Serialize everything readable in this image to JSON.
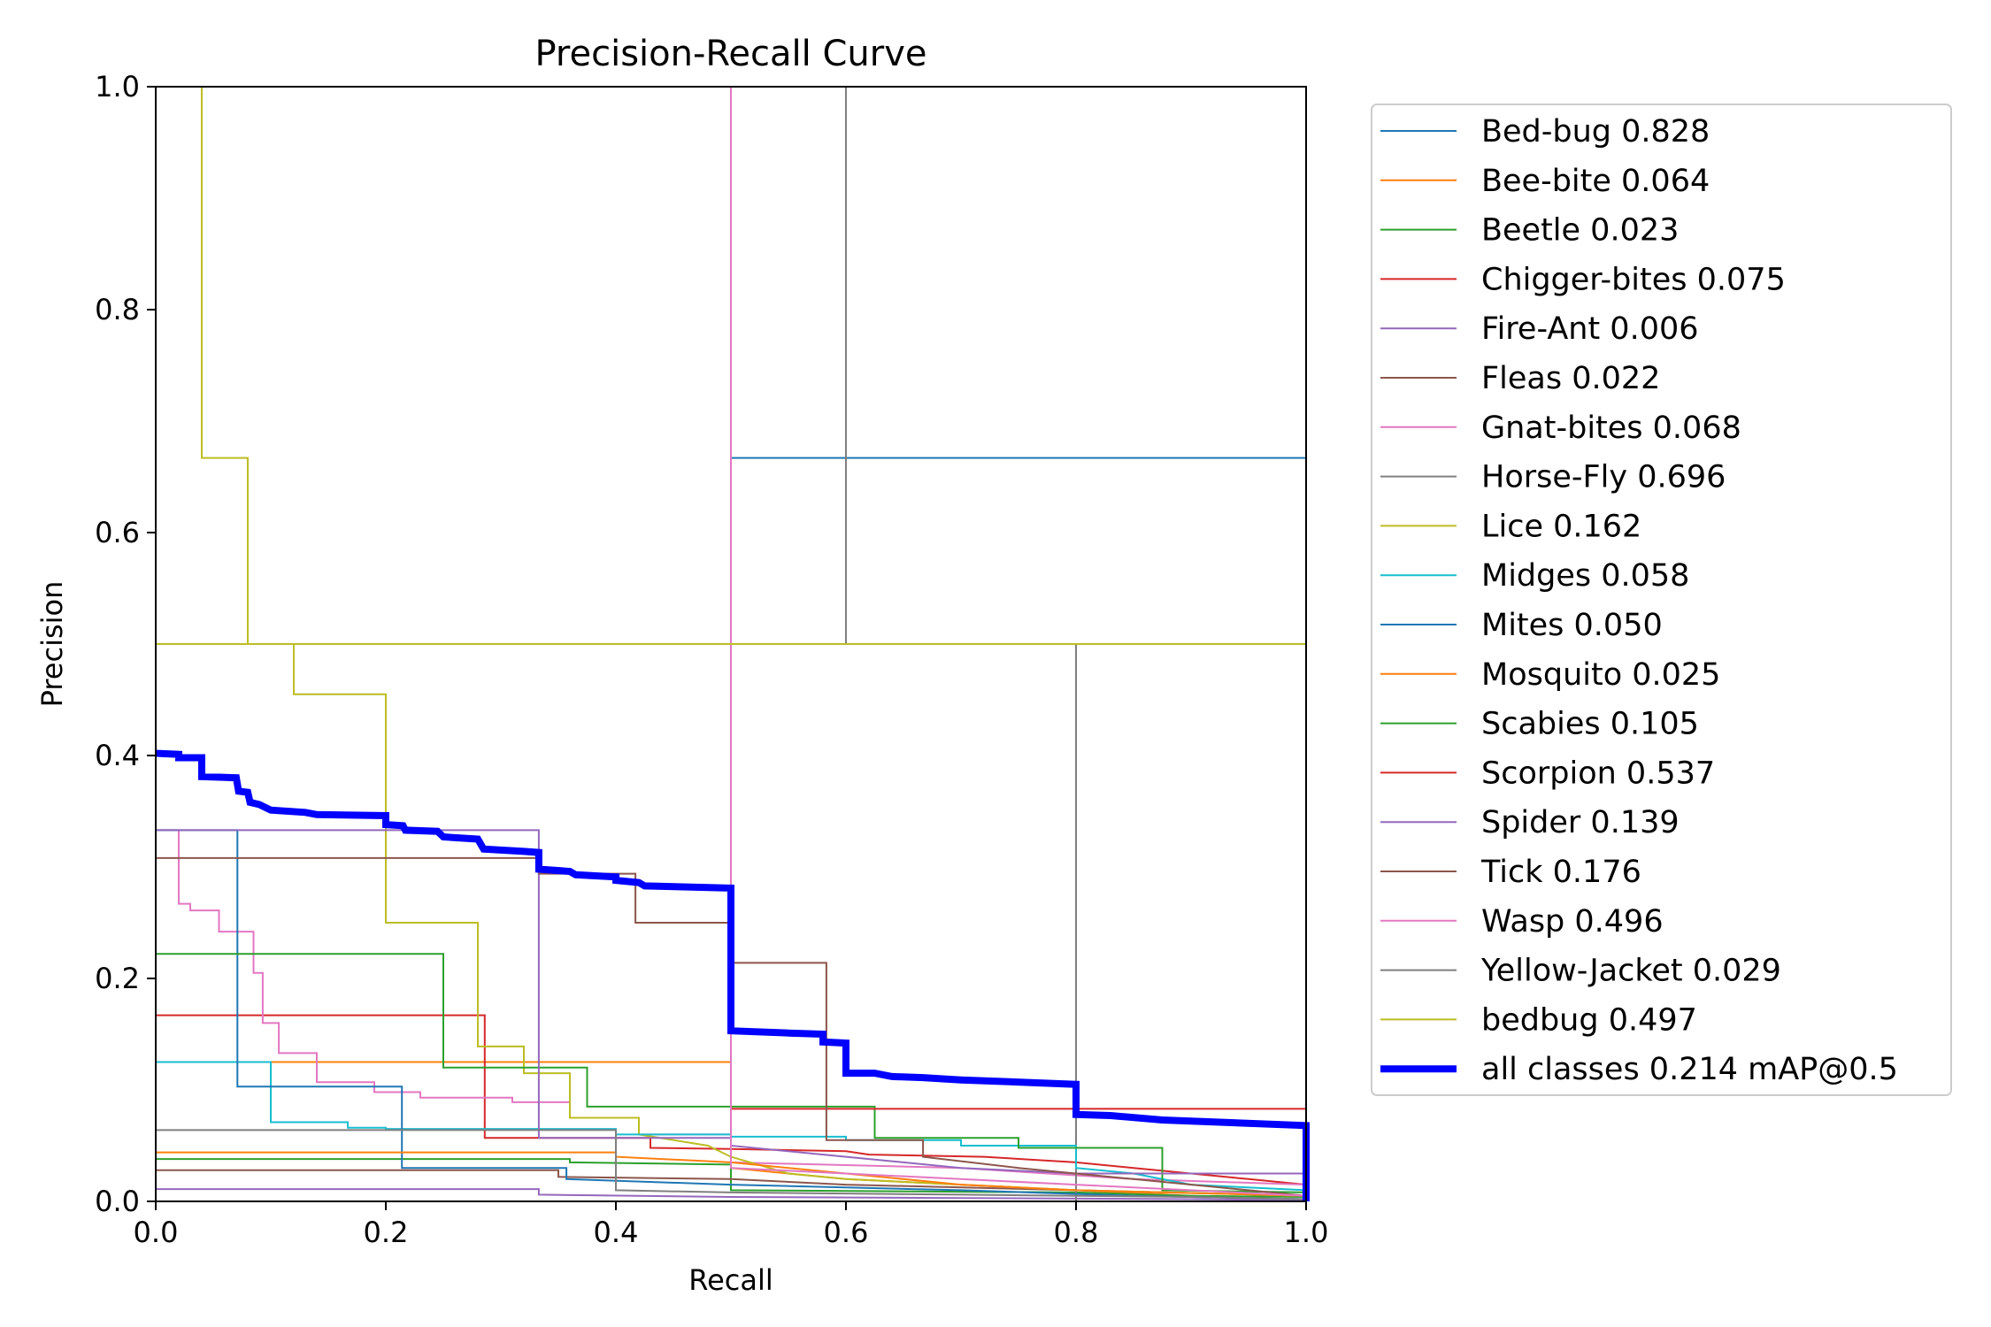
{
  "chart_data": {
    "type": "line",
    "title": "Precision-Recall Curve",
    "xlabel": "Recall",
    "ylabel": "Precision",
    "xlim": [
      0,
      1
    ],
    "ylim": [
      0,
      1
    ],
    "x_ticks": [
      "0.0",
      "0.2",
      "0.4",
      "0.6",
      "0.8",
      "1.0"
    ],
    "y_ticks": [
      "0.0",
      "0.2",
      "0.4",
      "0.6",
      "0.8",
      "1.0"
    ],
    "grid": false,
    "legend_position": "outside-right",
    "series": [
      {
        "name": "Bed-bug",
        "ap": "0.828",
        "color": "#1f77b4",
        "width": 1,
        "points": [
          [
            0,
            0.5
          ],
          [
            0.5,
            0.5
          ],
          [
            0.5,
            0.667
          ],
          [
            1.0,
            0.667
          ],
          [
            1.0,
            0.5
          ],
          [
            1.0,
            0
          ]
        ]
      },
      {
        "name": "Bee-bite",
        "ap": "0.064",
        "color": "#ff7f0e",
        "width": 1,
        "points": [
          [
            0,
            0.125
          ],
          [
            0.5,
            0.125
          ],
          [
            0.5,
            0.03
          ],
          [
            0.55,
            0.025
          ],
          [
            0.6,
            0.02
          ],
          [
            0.7,
            0.015
          ],
          [
            0.8,
            0.01
          ],
          [
            0.9,
            0.005
          ],
          [
            1.0,
            0
          ]
        ]
      },
      {
        "name": "Beetle",
        "ap": "0.023",
        "color": "#2ca02c",
        "width": 1,
        "points": [
          [
            0,
            0.038
          ],
          [
            0.36,
            0.038
          ],
          [
            0.36,
            0.035
          ],
          [
            0.5,
            0.033
          ],
          [
            0.5,
            0.01
          ],
          [
            0.8,
            0.008
          ],
          [
            0.9,
            0.005
          ],
          [
            1.0,
            0.004
          ]
        ]
      },
      {
        "name": "Chigger-bites",
        "ap": "0.075",
        "color": "#d62728",
        "width": 1,
        "points": [
          [
            0,
            0.167
          ],
          [
            0.286,
            0.167
          ],
          [
            0.286,
            0.057
          ],
          [
            0.43,
            0.057
          ],
          [
            0.43,
            0.048
          ],
          [
            0.5,
            0.047
          ],
          [
            0.6,
            0.045
          ],
          [
            0.62,
            0.042
          ],
          [
            0.72,
            0.04
          ],
          [
            0.8,
            0.035
          ],
          [
            0.85,
            0.03
          ],
          [
            0.95,
            0.02
          ],
          [
            1.0,
            0.015
          ]
        ]
      },
      {
        "name": "Fire-Ant",
        "ap": "0.006",
        "color": "#9467bd",
        "width": 1,
        "points": [
          [
            0,
            0.011
          ],
          [
            0.333,
            0.011
          ],
          [
            0.333,
            0.006
          ],
          [
            0.5,
            0.004
          ],
          [
            0.7,
            0.003
          ],
          [
            0.9,
            0.002
          ],
          [
            1.0,
            0.001
          ]
        ]
      },
      {
        "name": "Fleas",
        "ap": "0.022",
        "color": "#8c564b",
        "width": 1,
        "points": [
          [
            0,
            0.028
          ],
          [
            0.35,
            0.028
          ],
          [
            0.35,
            0.022
          ],
          [
            0.5,
            0.02
          ],
          [
            0.6,
            0.015
          ],
          [
            0.8,
            0.01
          ],
          [
            1.0,
            0.005
          ]
        ]
      },
      {
        "name": "Gnat-bites",
        "ap": "0.068",
        "color": "#e377c2",
        "width": 1,
        "points": [
          [
            0,
            0.333
          ],
          [
            0.02,
            0.333
          ],
          [
            0.02,
            0.267
          ],
          [
            0.03,
            0.267
          ],
          [
            0.03,
            0.261
          ],
          [
            0.055,
            0.261
          ],
          [
            0.055,
            0.242
          ],
          [
            0.085,
            0.242
          ],
          [
            0.085,
            0.205
          ],
          [
            0.093,
            0.205
          ],
          [
            0.093,
            0.16
          ],
          [
            0.107,
            0.16
          ],
          [
            0.107,
            0.133
          ],
          [
            0.14,
            0.133
          ],
          [
            0.14,
            0.107
          ],
          [
            0.19,
            0.107
          ],
          [
            0.19,
            0.098
          ],
          [
            0.23,
            0.098
          ],
          [
            0.23,
            0.093
          ],
          [
            0.31,
            0.093
          ],
          [
            0.31,
            0.089
          ],
          [
            0.36,
            0.089
          ],
          [
            0.36,
            0.075
          ],
          [
            0.42,
            0.075
          ],
          [
            0.42,
            0.06
          ],
          [
            0.5,
            0.06
          ],
          [
            0.5,
            0.035
          ],
          [
            0.7,
            0.03
          ],
          [
            0.85,
            0.02
          ],
          [
            1.0,
            0.015
          ]
        ]
      },
      {
        "name": "Horse-Fly",
        "ap": "0.696",
        "color": "#7f7f7f",
        "width": 1,
        "points": [
          [
            0,
            0.5
          ],
          [
            0.6,
            0.5
          ],
          [
            0.6,
            1.0
          ],
          [
            0.6,
            0.5
          ],
          [
            0.8,
            0.5
          ],
          [
            0.8,
            0
          ],
          [
            1.0,
            0
          ]
        ]
      },
      {
        "name": "Lice",
        "ap": "0.162",
        "color": "#bcbd22",
        "width": 1,
        "points": [
          [
            0.04,
            1.0
          ],
          [
            0.04,
            0.667
          ],
          [
            0.08,
            0.667
          ],
          [
            0.08,
            0.5
          ],
          [
            0.12,
            0.5
          ],
          [
            0.12,
            0.455
          ],
          [
            0.2,
            0.455
          ],
          [
            0.2,
            0.25
          ],
          [
            0.28,
            0.25
          ],
          [
            0.28,
            0.139
          ],
          [
            0.32,
            0.139
          ],
          [
            0.32,
            0.115
          ],
          [
            0.36,
            0.115
          ],
          [
            0.36,
            0.075
          ],
          [
            0.42,
            0.075
          ],
          [
            0.42,
            0.06
          ],
          [
            0.48,
            0.05
          ],
          [
            0.5,
            0.04
          ],
          [
            0.55,
            0.025
          ],
          [
            0.6,
            0.02
          ],
          [
            0.7,
            0.015
          ],
          [
            0.8,
            0.01
          ],
          [
            1.0,
            0.005
          ]
        ]
      },
      {
        "name": "Midges",
        "ap": "0.058",
        "color": "#17becf",
        "width": 1,
        "points": [
          [
            0,
            0.125
          ],
          [
            0.1,
            0.125
          ],
          [
            0.1,
            0.071
          ],
          [
            0.167,
            0.071
          ],
          [
            0.167,
            0.066
          ],
          [
            0.2,
            0.066
          ],
          [
            0.2,
            0.065
          ],
          [
            0.4,
            0.065
          ],
          [
            0.4,
            0.06
          ],
          [
            0.5,
            0.06
          ],
          [
            0.5,
            0.058
          ],
          [
            0.6,
            0.058
          ],
          [
            0.6,
            0.055
          ],
          [
            0.7,
            0.055
          ],
          [
            0.7,
            0.05
          ],
          [
            0.8,
            0.05
          ],
          [
            0.8,
            0.03
          ],
          [
            0.85,
            0.025
          ],
          [
            0.9,
            0.015
          ],
          [
            1.0,
            0.01
          ]
        ]
      },
      {
        "name": "Mites",
        "ap": "0.050",
        "color": "#1f77b4",
        "width": 1,
        "points": [
          [
            0,
            0.333
          ],
          [
            0.071,
            0.333
          ],
          [
            0.071,
            0.103
          ],
          [
            0.214,
            0.103
          ],
          [
            0.214,
            0.03
          ],
          [
            0.357,
            0.03
          ],
          [
            0.357,
            0.02
          ],
          [
            0.5,
            0.015
          ],
          [
            0.7,
            0.01
          ],
          [
            0.85,
            0.005
          ],
          [
            1.0,
            0.002
          ]
        ]
      },
      {
        "name": "Mosquito",
        "ap": "0.025",
        "color": "#ff7f0e",
        "width": 1,
        "points": [
          [
            0,
            0.044
          ],
          [
            0.4,
            0.044
          ],
          [
            0.4,
            0.04
          ],
          [
            0.5,
            0.035
          ],
          [
            0.6,
            0.025
          ],
          [
            0.7,
            0.015
          ],
          [
            0.8,
            0.01
          ],
          [
            1.0,
            0.005
          ]
        ]
      },
      {
        "name": "Scabies",
        "ap": "0.105",
        "color": "#2ca02c",
        "width": 1,
        "points": [
          [
            0,
            0.222
          ],
          [
            0.25,
            0.222
          ],
          [
            0.25,
            0.12
          ],
          [
            0.375,
            0.12
          ],
          [
            0.375,
            0.085
          ],
          [
            0.625,
            0.085
          ],
          [
            0.625,
            0.057
          ],
          [
            0.75,
            0.057
          ],
          [
            0.75,
            0.048
          ],
          [
            0.875,
            0.048
          ],
          [
            0.875,
            0.01
          ],
          [
            1.0,
            0.008
          ]
        ]
      },
      {
        "name": "Scorpion",
        "ap": "0.537",
        "color": "#d62728",
        "width": 1,
        "points": [
          [
            0,
            0.5
          ],
          [
            0.5,
            0.5
          ],
          [
            0.5,
            0.083
          ],
          [
            1.0,
            0.083
          ],
          [
            1.0,
            0
          ]
        ]
      },
      {
        "name": "Spider",
        "ap": "0.139",
        "color": "#9467bd",
        "width": 1,
        "points": [
          [
            0,
            0.333
          ],
          [
            0.333,
            0.333
          ],
          [
            0.333,
            0.057
          ],
          [
            0.5,
            0.057
          ],
          [
            0.5,
            0.05
          ],
          [
            0.6,
            0.04
          ],
          [
            0.7,
            0.03
          ],
          [
            0.8,
            0.025
          ],
          [
            0.9,
            0.025
          ],
          [
            1.0,
            0.025
          ]
        ]
      },
      {
        "name": "Tick",
        "ap": "0.176",
        "color": "#8c564b",
        "width": 1,
        "points": [
          [
            0,
            0.308
          ],
          [
            0.333,
            0.308
          ],
          [
            0.333,
            0.294
          ],
          [
            0.417,
            0.294
          ],
          [
            0.417,
            0.25
          ],
          [
            0.5,
            0.25
          ],
          [
            0.5,
            0.214
          ],
          [
            0.583,
            0.214
          ],
          [
            0.583,
            0.055
          ],
          [
            0.667,
            0.055
          ],
          [
            0.667,
            0.04
          ],
          [
            0.75,
            0.03
          ],
          [
            0.85,
            0.02
          ],
          [
            1.0,
            0.005
          ]
        ]
      },
      {
        "name": "Wasp",
        "ap": "0.496",
        "color": "#e377c2",
        "width": 1,
        "points": [
          [
            0,
            0.5
          ],
          [
            0.5,
            0.5
          ],
          [
            0.5,
            1.0
          ],
          [
            0.5,
            0.03
          ],
          [
            0.6,
            0.025
          ],
          [
            0.7,
            0.02
          ],
          [
            0.8,
            0.015
          ],
          [
            0.9,
            0.01
          ],
          [
            1.0,
            0.005
          ]
        ]
      },
      {
        "name": "Yellow-Jacket",
        "ap": "0.029",
        "color": "#7f7f7f",
        "width": 1,
        "points": [
          [
            0,
            0.064
          ],
          [
            0.4,
            0.064
          ],
          [
            0.4,
            0.01
          ],
          [
            0.5,
            0.008
          ],
          [
            0.7,
            0.006
          ],
          [
            0.9,
            0.004
          ],
          [
            1.0,
            0.002
          ]
        ]
      },
      {
        "name": "bedbug",
        "ap": "0.497",
        "color": "#bcbd22",
        "width": 1,
        "points": [
          [
            0,
            0.5
          ],
          [
            1.0,
            0.5
          ],
          [
            1.0,
            0
          ]
        ]
      },
      {
        "name": "all classes",
        "ap": "0.214 mAP@0.5",
        "color": "#0000ff",
        "width": 4,
        "points": [
          [
            0,
            0.402
          ],
          [
            0.02,
            0.401
          ],
          [
            0.02,
            0.398
          ],
          [
            0.04,
            0.398
          ],
          [
            0.04,
            0.381
          ],
          [
            0.07,
            0.38
          ],
          [
            0.072,
            0.368
          ],
          [
            0.08,
            0.367
          ],
          [
            0.082,
            0.358
          ],
          [
            0.09,
            0.356
          ],
          [
            0.1,
            0.351
          ],
          [
            0.13,
            0.349
          ],
          [
            0.14,
            0.347
          ],
          [
            0.2,
            0.346
          ],
          [
            0.2,
            0.338
          ],
          [
            0.215,
            0.337
          ],
          [
            0.217,
            0.333
          ],
          [
            0.245,
            0.332
          ],
          [
            0.25,
            0.327
          ],
          [
            0.28,
            0.325
          ],
          [
            0.285,
            0.316
          ],
          [
            0.32,
            0.314
          ],
          [
            0.333,
            0.313
          ],
          [
            0.333,
            0.298
          ],
          [
            0.36,
            0.296
          ],
          [
            0.365,
            0.293
          ],
          [
            0.4,
            0.291
          ],
          [
            0.4,
            0.288
          ],
          [
            0.42,
            0.286
          ],
          [
            0.425,
            0.283
          ],
          [
            0.5,
            0.281
          ],
          [
            0.5,
            0.153
          ],
          [
            0.55,
            0.151
          ],
          [
            0.58,
            0.15
          ],
          [
            0.58,
            0.143
          ],
          [
            0.6,
            0.142
          ],
          [
            0.6,
            0.115
          ],
          [
            0.625,
            0.115
          ],
          [
            0.64,
            0.112
          ],
          [
            0.667,
            0.111
          ],
          [
            0.7,
            0.109
          ],
          [
            0.8,
            0.105
          ],
          [
            0.8,
            0.078
          ],
          [
            0.83,
            0.077
          ],
          [
            0.875,
            0.073
          ],
          [
            0.9,
            0.072
          ],
          [
            1.0,
            0.068
          ],
          [
            1.0,
            0
          ]
        ]
      }
    ]
  }
}
